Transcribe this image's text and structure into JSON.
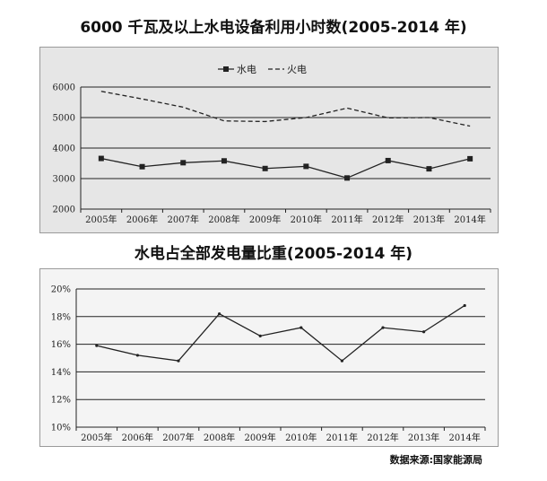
{
  "chart_data": [
    {
      "type": "line",
      "title": "6000 千瓦及以上水电设备利用小时数(2005-2014 年)",
      "categories": [
        "2005年",
        "2006年",
        "2007年",
        "2008年",
        "2009年",
        "2010年",
        "2011年",
        "2012年",
        "2013年",
        "2014年"
      ],
      "series": [
        {
          "name": "水电",
          "values": [
            3660,
            3390,
            3520,
            3580,
            3330,
            3400,
            3020,
            3590,
            3320,
            3650
          ],
          "color": "#222222",
          "marker": "square",
          "dash": "solid"
        },
        {
          "name": "火电",
          "values": [
            5860,
            5610,
            5340,
            4890,
            4870,
            5000,
            5310,
            4990,
            5000,
            4720
          ],
          "color": "#222222",
          "marker": "none",
          "dash": "dashed"
        }
      ],
      "ylim": [
        2000,
        6000
      ],
      "yticks": [
        "2000",
        "3000",
        "4000",
        "5000",
        "6000"
      ],
      "grid": true,
      "legend_position": "top"
    },
    {
      "type": "line",
      "title": "水电占全部发电量比重(2005-2014 年)",
      "categories": [
        "2005年",
        "2006年",
        "2007年",
        "2008年",
        "2009年",
        "2010年",
        "2011年",
        "2012年",
        "2013年",
        "2014年"
      ],
      "series": [
        {
          "values": [
            15.9,
            15.2,
            14.8,
            18.2,
            16.6,
            17.2,
            14.8,
            17.2,
            16.9,
            18.8
          ],
          "color": "#222222"
        }
      ],
      "ylim": [
        10,
        20
      ],
      "yticks": [
        "10%",
        "12%",
        "14%",
        "16%",
        "18%",
        "20%"
      ],
      "grid": true
    }
  ],
  "source": "数据来源:国家能源局"
}
